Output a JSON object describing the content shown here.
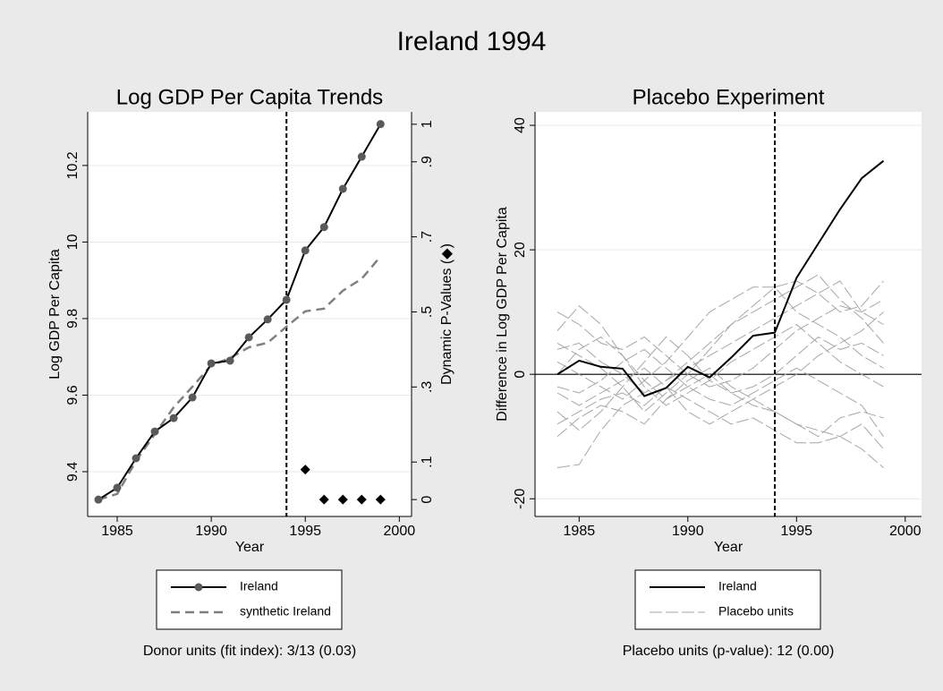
{
  "title": "Ireland 1994",
  "chart_data": [
    {
      "type": "line",
      "title": "Log GDP Per Capita Trends",
      "xlabel": "Year",
      "ylabel": "Log GDP Per Capita",
      "y2label": "Dynamic P-Values (◆)",
      "x": [
        1984,
        1985,
        1986,
        1987,
        1988,
        1989,
        1990,
        1991,
        1992,
        1993,
        1994,
        1995,
        1996,
        1997,
        1998,
        1999
      ],
      "series": [
        {
          "name": "Ireland",
          "color": "#000000",
          "marker_color": "#5a5a5a",
          "style": "solid",
          "values": [
            9.327,
            9.358,
            9.435,
            9.505,
            9.54,
            9.594,
            9.683,
            9.69,
            9.751,
            9.798,
            9.849,
            9.978,
            10.039,
            10.139,
            10.223,
            10.308
          ]
        },
        {
          "name": "synthetic Ireland",
          "color": "#808080",
          "style": "dashed",
          "values": [
            9.327,
            9.342,
            9.428,
            9.498,
            9.568,
            9.622,
            9.678,
            9.697,
            9.725,
            9.737,
            9.779,
            9.819,
            9.826,
            9.873,
            9.904,
            9.962
          ]
        }
      ],
      "pvalues": {
        "axis": "y2",
        "color": "#000000",
        "values": [
          null,
          null,
          null,
          null,
          null,
          null,
          null,
          null,
          null,
          null,
          null,
          0.08,
          0,
          0,
          0,
          0
        ]
      },
      "vline": 1994,
      "xlim": [
        1983.43,
        2000.65
      ],
      "xticks": [
        1985,
        1990,
        1995,
        2000
      ],
      "ylim": [
        9.283,
        10.34
      ],
      "yticks": [
        9.4,
        9.6,
        9.8,
        10,
        10.2
      ],
      "y2lim": [
        -0.045,
        1.033
      ],
      "y2ticks": [
        0,
        {
          "value": 0.1,
          "label": ".1"
        },
        {
          "value": 0.3,
          "label": ".3"
        },
        {
          "value": 0.5,
          "label": ".5"
        },
        {
          "value": 0.7,
          "label": ".7"
        },
        {
          "value": 0.9,
          "label": ".9"
        },
        1
      ],
      "grid": true,
      "note": "Donor units (fit index): 3/13 (0.03)"
    },
    {
      "type": "line",
      "title": "Placebo Experiment",
      "xlabel": "Year",
      "ylabel": "Difference in Log  GDP Per Capita",
      "x": [
        1984,
        1985,
        1986,
        1987,
        1988,
        1989,
        1990,
        1991,
        1992,
        1993,
        1994,
        1995,
        1996,
        1997,
        1998,
        1999
      ],
      "series": [
        {
          "name": "Ireland",
          "color": "#000000",
          "style": "solid",
          "values": [
            0,
            2.2,
            1.2,
            0.9,
            -3.5,
            -2.2,
            1.2,
            -0.5,
            2.7,
            6.2,
            6.7,
            15.5,
            21,
            26.5,
            31.5,
            34.3
          ]
        }
      ],
      "placebo": {
        "name": "Placebo units",
        "color": "#a6a6a6",
        "lines": [
          [
            7,
            11,
            8,
            3,
            -1,
            -4,
            -2,
            0,
            -3,
            -5,
            -6,
            -8,
            -9,
            -10,
            -8,
            -12
          ],
          [
            -15,
            -14.5,
            -9,
            -5,
            -3,
            -1,
            2,
            5,
            8,
            11,
            14,
            15,
            13,
            10,
            11,
            15
          ],
          [
            5,
            3,
            1,
            -2,
            -6,
            -3,
            0,
            4,
            8,
            10,
            12,
            14,
            16,
            12,
            9,
            5
          ],
          [
            -8,
            -6,
            -4,
            -3,
            -5,
            -2,
            -6,
            -8,
            -6,
            -4,
            -2,
            0,
            3,
            5,
            7,
            10
          ],
          [
            2,
            0,
            -2,
            -4,
            -1,
            2,
            6,
            10,
            12,
            14,
            14,
            10,
            8,
            6,
            3,
            1
          ],
          [
            -3,
            -5,
            -3,
            -1,
            1,
            -2,
            -4,
            -6,
            -8,
            -7,
            -9,
            -11,
            -11,
            -10,
            -12,
            -15
          ],
          [
            10,
            8,
            5,
            4,
            6,
            3,
            0,
            -2,
            -1,
            1,
            4,
            7,
            9,
            11,
            10,
            12
          ],
          [
            -6,
            -9,
            -6,
            -2,
            2,
            6,
            3,
            -1,
            -3,
            -2,
            0,
            3,
            6,
            4,
            5,
            3
          ],
          [
            0,
            4,
            6,
            3,
            -2,
            -5,
            -3,
            -1,
            2,
            4,
            6,
            8,
            5,
            2,
            0,
            -2
          ],
          [
            -10,
            -7,
            -5,
            -6,
            -8,
            -4,
            -1,
            1,
            -2,
            -4,
            -6,
            -8,
            -10,
            -7,
            -6,
            -7
          ],
          [
            4,
            5,
            2,
            0,
            -3,
            -1,
            1,
            3,
            5,
            7,
            9,
            11,
            13,
            15,
            10,
            8
          ],
          [
            -2,
            -3,
            -1,
            2,
            4,
            1,
            -2,
            -4,
            -5,
            -3,
            -1,
            1,
            -1,
            -3,
            -5,
            -10
          ]
        ]
      },
      "vline": 1994,
      "hline": 0,
      "xlim": [
        1982.97,
        2000.75
      ],
      "xticks": [
        1985,
        1990,
        1995,
        2000
      ],
      "ylim": [
        -22.84,
        42.16
      ],
      "yticks": [
        -20,
        0,
        20,
        40
      ],
      "grid": true,
      "note": "Placebo units (p-value): 12 (0.00)"
    }
  ]
}
